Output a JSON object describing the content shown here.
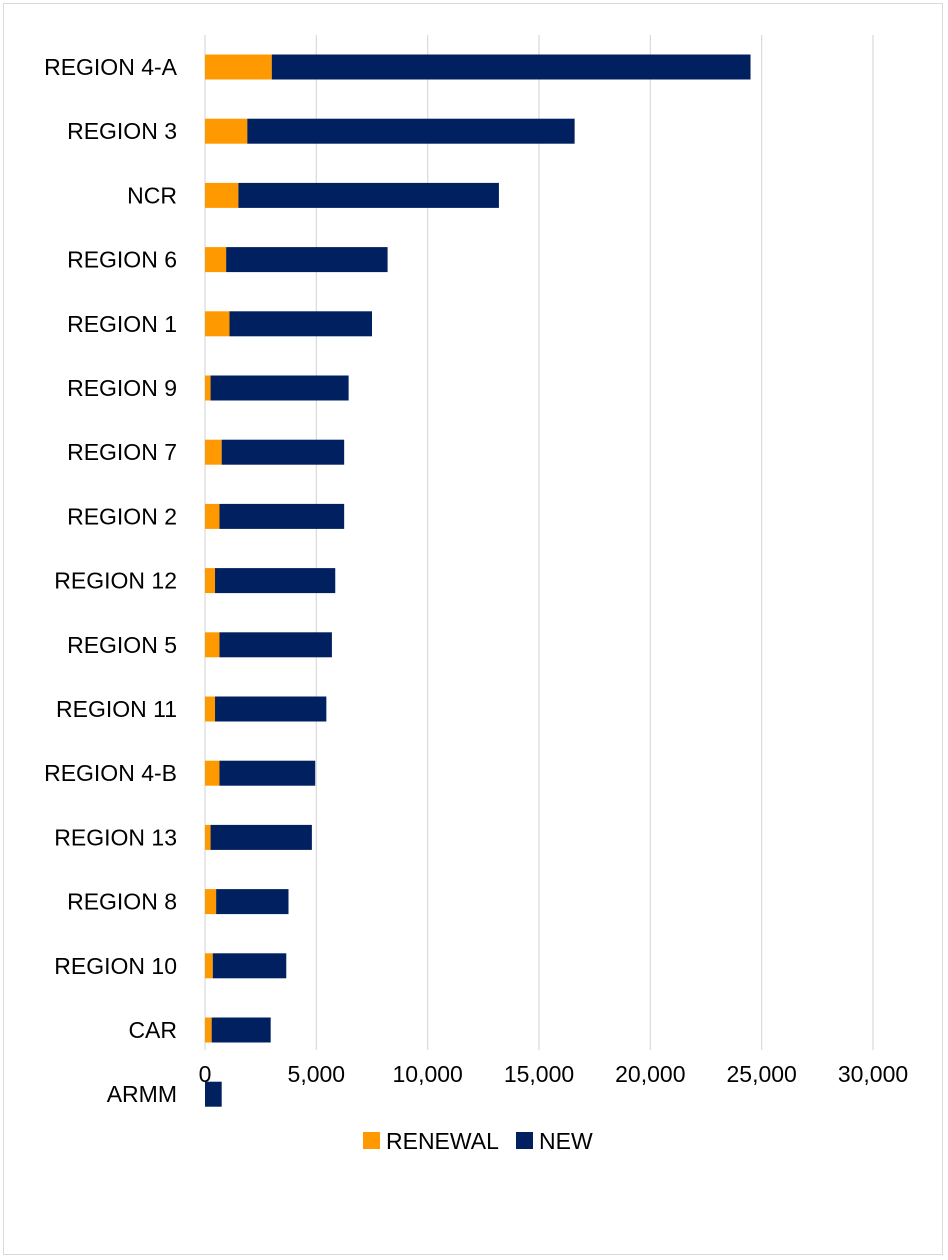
{
  "chart_data": {
    "type": "bar",
    "orientation": "horizontal",
    "stacked": true,
    "categories": [
      "REGION 4-A",
      "REGION 3",
      "NCR",
      "REGION 6",
      "REGION 1",
      "REGION 9",
      "REGION 7",
      "REGION 2",
      "REGION 12",
      "REGION 5",
      "REGION 11",
      "REGION 4-B",
      "REGION 13",
      "REGION 8",
      "REGION 10",
      "CAR",
      "ARMM"
    ],
    "series": [
      {
        "name": "RENEWAL",
        "color": "#FF9900",
        "values": [
          3000,
          1900,
          1500,
          950,
          1100,
          250,
          750,
          650,
          450,
          650,
          450,
          650,
          250,
          500,
          350,
          300,
          0
        ]
      },
      {
        "name": "NEW",
        "color": "#002060",
        "values": [
          21500,
          14700,
          11700,
          7250,
          6400,
          6200,
          5500,
          5600,
          5400,
          5050,
          5000,
          4300,
          4550,
          3250,
          3300,
          2650,
          750
        ]
      }
    ],
    "xlim": [
      0,
      30000
    ],
    "xticks": [
      0,
      5000,
      10000,
      15000,
      20000,
      25000,
      30000
    ],
    "xtick_labels": [
      "0",
      "5,000",
      "10,000",
      "15,000",
      "20,000",
      "25,000",
      "30,000"
    ],
    "grid": "vertical",
    "legend": "bottom",
    "title": "",
    "xlabel": "",
    "ylabel": ""
  }
}
